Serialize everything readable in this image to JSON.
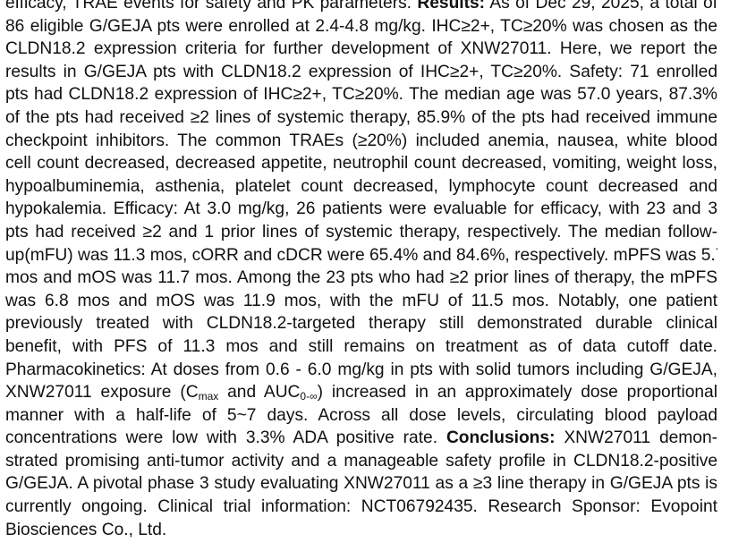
{
  "lines": [
    [
      {
        "t": "efficacy, TRAE events for safety and PK parameters. "
      },
      {
        "t": "Results:",
        "b": true
      },
      {
        "t": "  As of Dec 29, 2025, a total of"
      }
    ],
    [
      {
        "t": "86 eligible G/GEJA pts were enrolled at 2.4-4.8 mg/kg. IHC≥2+, TC≥20% was chosen as the"
      }
    ],
    [
      {
        "t": "CLDN18.2 expression criteria for further development of XNW27011. Here, we report the"
      }
    ],
    [
      {
        "t": "results in G/GEJA pts with CLDN18.2 expression of IHC≥2+, TC≥20%. Safety: 71 enrolled"
      }
    ],
    [
      {
        "t": "pts had CLDN18.2 expression of IHC≥2+, TC≥20%. The median age was 57.0 years, 87.3%"
      }
    ],
    [
      {
        "t": "of the pts had received ≥2 lines of systemic therapy, 85.9% of the pts had received immune"
      }
    ],
    [
      {
        "t": "checkpoint inhibitors. The common TRAEs (≥20%) included anemia, nausea, white blood"
      }
    ],
    [
      {
        "t": "cell count decreased, decreased appetite, neutrophil count decreased, vomiting, weight loss,"
      }
    ],
    [
      {
        "t": "hypoalbuminemia, asthenia, platelet count decreased, lymphocyte count decreased and"
      }
    ],
    [
      {
        "t": "hypokalemia. Efficacy: At 3.0 mg/kg, 26 patients were evaluable for efficacy, with 23 and 3"
      }
    ],
    [
      {
        "t": "pts had received ≥2 and 1 prior lines of systemic therapy, respectively. The median follow-"
      }
    ],
    [
      {
        "t": "up(mFU) was 11.3 mos, cORR and cDCR were 65.4% and 84.6%, respectively. mPFS was 5.7"
      }
    ],
    [
      {
        "t": "mos and mOS was 11.7 mos. Among the 23 pts who had ≥2 prior lines of therapy, the mPFS"
      }
    ],
    [
      {
        "t": "was 6.8 mos and mOS was 11.9 mos, with the mFU of 11.5 mos. Notably, one patient"
      }
    ],
    [
      {
        "t": "previously treated with CLDN18.2-targeted therapy still demonstrated durable clinical"
      }
    ],
    [
      {
        "t": "benefit, with PFS of 11.3 mos and still remains on treatment as of data cutoff date."
      }
    ],
    [
      {
        "t": "Pharmacokinetics: At doses from 0.6 - 6.0 mg/kg in pts with solid tumors including G/GEJA,"
      }
    ],
    [
      {
        "t": "XNW27011 exposure (C"
      },
      {
        "t": "max",
        "sub": true
      },
      {
        "t": " and AUC"
      },
      {
        "t": "0-∞",
        "sub": true
      },
      {
        "t": ") increased in an approximately dose proportional"
      }
    ],
    [
      {
        "t": "manner with a half-life of 5~7 days. Across all dose levels, circulating blood payload"
      }
    ],
    [
      {
        "t": "concentrations were low with 3.3% ADA positive rate. "
      },
      {
        "t": "Conclusions:",
        "b": true
      },
      {
        "t": " XNW27011 demon-"
      }
    ],
    [
      {
        "t": "strated promising anti-tumor activity and a manageable safety profile in CLDN18.2-positive"
      }
    ],
    [
      {
        "t": "G/GEJA. A pivotal phase 3 study evaluating XNW27011 as a ≥3 line therapy in G/GEJA pts is"
      }
    ],
    [
      {
        "t": "currently ongoing. Clinical trial information: NCT06792435. Research Sponsor: Evopoint"
      }
    ],
    [
      {
        "t": "Biosciences Co., Ltd."
      }
    ]
  ]
}
